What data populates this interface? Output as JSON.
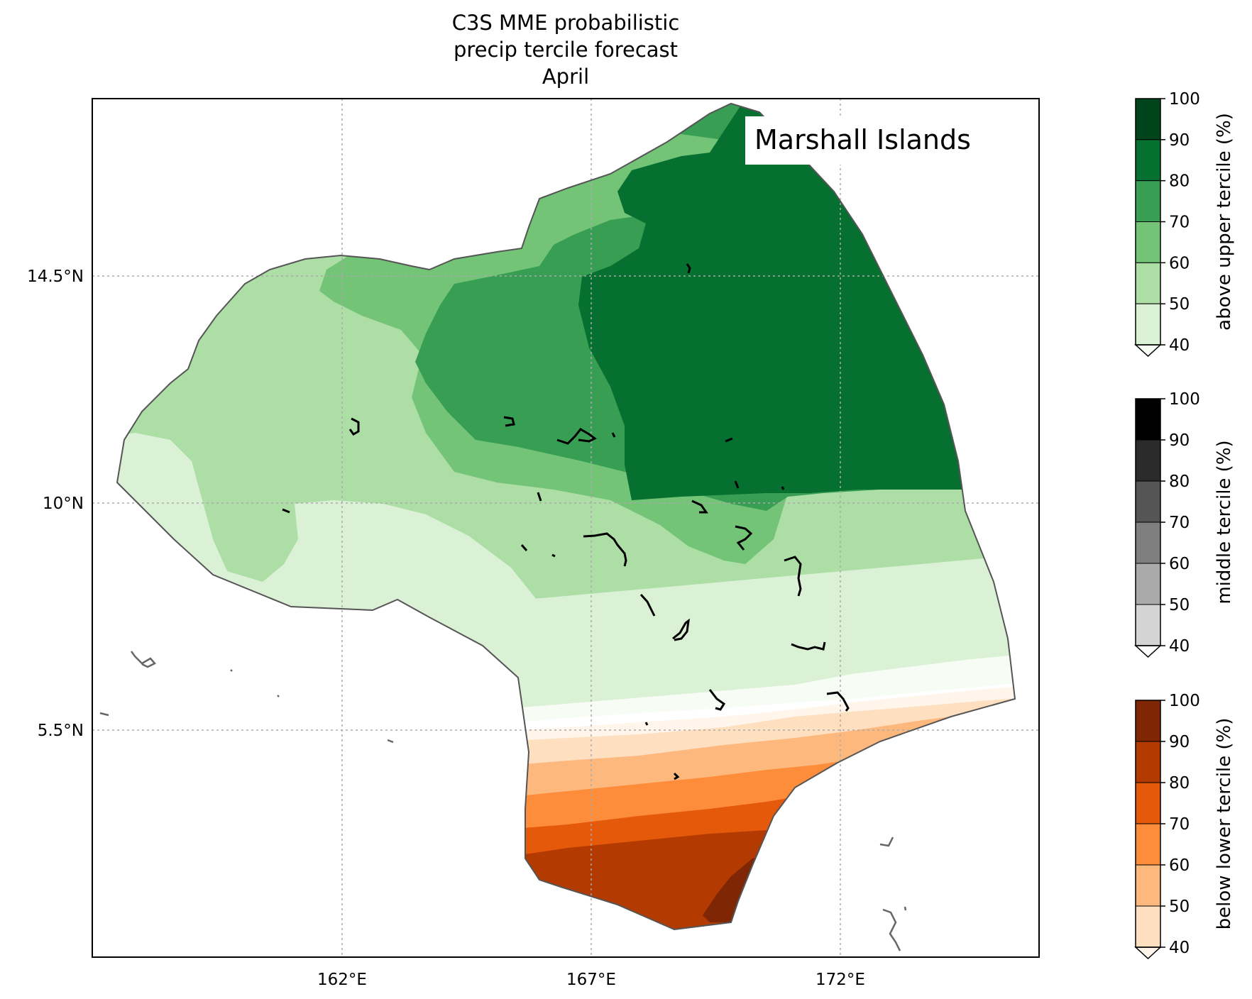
{
  "title": {
    "line1": "C3S MME probabilistic",
    "line2": "precip tercile forecast",
    "line3": "April"
  },
  "place_label": "Marshall Islands",
  "axes": {
    "lon_ticks": [
      "162°E",
      "167°E",
      "172°E"
    ],
    "lat_ticks": [
      "14.5°N",
      "10°N",
      "5.5°N"
    ],
    "grid": "dotted"
  },
  "colorbars": [
    {
      "label": "above upper tercile (%)",
      "ticks": [
        "100",
        "90",
        "80",
        "70",
        "60",
        "50",
        "40"
      ],
      "colors": [
        "#00441b",
        "#067030",
        "#379e54",
        "#73c476",
        "#acdea6",
        "#dbf1d6"
      ],
      "under_color": "#f7fcf5"
    },
    {
      "label": "middle tercile (%)",
      "ticks": [
        "100",
        "90",
        "80",
        "70",
        "60",
        "50",
        "40"
      ],
      "colors": [
        "#000000",
        "#2b2b2b",
        "#555555",
        "#7f7f7f",
        "#aaaaaa",
        "#d4d4d4"
      ],
      "under_color": "#ffffff"
    },
    {
      "label": "below lower tercile (%)",
      "ticks": [
        "100",
        "90",
        "80",
        "70",
        "60",
        "50",
        "40"
      ],
      "colors": [
        "#7f2704",
        "#b33b02",
        "#e5590a",
        "#fd8c3b",
        "#fdb97d",
        "#fedfc0"
      ],
      "under_color": "#fff5eb"
    }
  ]
}
